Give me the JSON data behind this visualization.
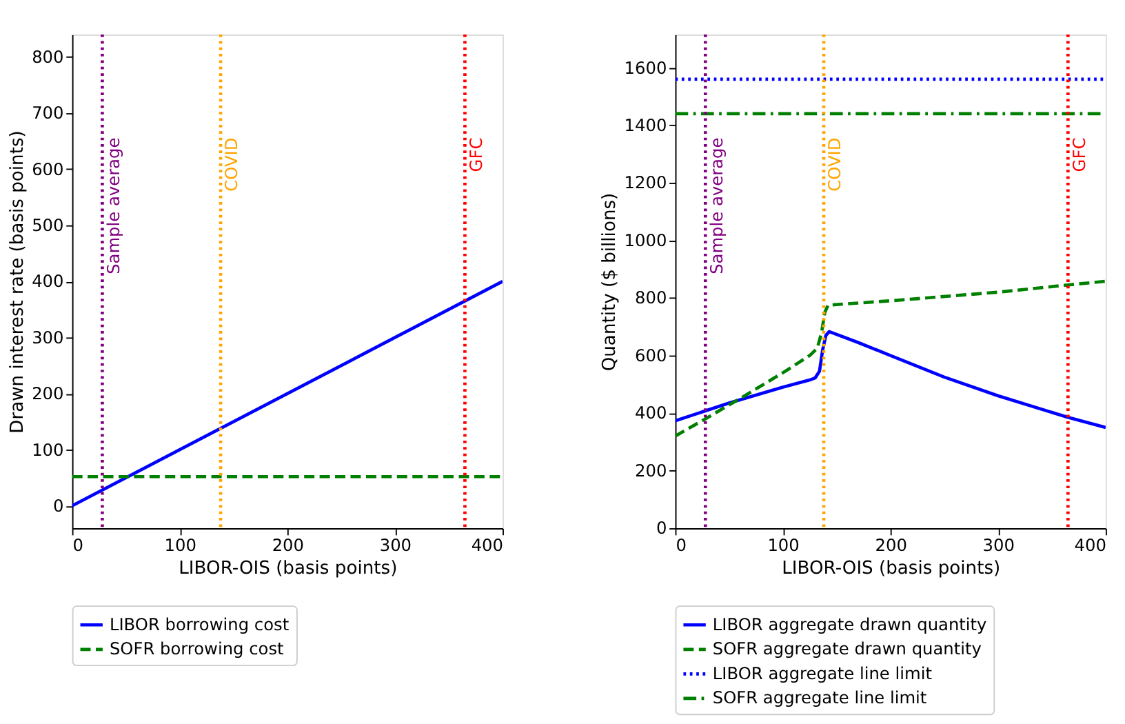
{
  "chart_data": [
    {
      "type": "line",
      "xlabel": "LIBOR-OIS (basis points)",
      "ylabel": "Drawn interest rate (basis points)",
      "xlim": [
        0,
        400
      ],
      "ylim": [
        -40,
        840
      ],
      "xticks": [
        0,
        100,
        200,
        300,
        400
      ],
      "yticks": [
        0,
        100,
        200,
        300,
        400,
        500,
        600,
        700,
        800
      ],
      "grid": false,
      "legend": "bottom",
      "series": [
        {
          "name": "LIBOR borrowing cost",
          "color": "#0000ff",
          "line_style": "solid",
          "x": [
            0,
            400
          ],
          "values": [
            0,
            400
          ]
        },
        {
          "name": "SOFR borrowing cost",
          "color": "#008000",
          "line_style": "dashed",
          "x": [
            0,
            400
          ],
          "values": [
            52,
            52
          ]
        }
      ],
      "ref_lines": [
        {
          "axis": "x",
          "value": 28,
          "label": "Sample average",
          "color": "#800080",
          "line_style": "dotted"
        },
        {
          "axis": "x",
          "value": 138,
          "label": "COVID",
          "color": "#ffa500",
          "line_style": "dotted"
        },
        {
          "axis": "x",
          "value": 365,
          "label": "GFC",
          "color": "#ff0000",
          "line_style": "dotted"
        }
      ]
    },
    {
      "type": "line",
      "xlabel": "LIBOR-OIS (basis points)",
      "ylabel": "Quantity ($ billions)",
      "xlim": [
        0,
        400
      ],
      "ylim": [
        0,
        1715
      ],
      "xticks": [
        0,
        100,
        200,
        300,
        400
      ],
      "yticks": [
        0,
        200,
        400,
        600,
        800,
        1000,
        1200,
        1400,
        1600
      ],
      "grid": false,
      "legend": "bottom",
      "series": [
        {
          "name": "LIBOR aggregate drawn quantity",
          "color": "#0000ff",
          "line_style": "solid",
          "x": [
            0,
            50,
            100,
            125,
            130,
            134,
            137,
            140,
            143,
            170,
            200,
            250,
            300,
            365,
            400
          ],
          "values": [
            373,
            435,
            490,
            515,
            522,
            545,
            620,
            670,
            683,
            645,
            600,
            525,
            460,
            385,
            350
          ]
        },
        {
          "name": "SOFR aggregate drawn quantity",
          "color": "#008000",
          "line_style": "dashed",
          "x": [
            0,
            28,
            60,
            100,
            125,
            132,
            136,
            139,
            142,
            200,
            300,
            365,
            400
          ],
          "values": [
            320,
            380,
            450,
            540,
            600,
            625,
            680,
            750,
            775,
            790,
            820,
            845,
            858
          ]
        },
        {
          "name": "LIBOR aggregate line limit",
          "color": "#0000ff",
          "line_style": "dotted",
          "x": [
            0,
            400
          ],
          "values": [
            1560,
            1560
          ]
        },
        {
          "name": "SOFR aggregate line limit",
          "color": "#008000",
          "line_style": "dashdot",
          "x": [
            0,
            400
          ],
          "values": [
            1440,
            1440
          ]
        }
      ],
      "ref_lines": [
        {
          "axis": "x",
          "value": 28,
          "label": "Sample average",
          "color": "#800080",
          "line_style": "dotted"
        },
        {
          "axis": "x",
          "value": 138,
          "label": "COVID",
          "color": "#ffa500",
          "line_style": "dotted"
        },
        {
          "axis": "x",
          "value": 365,
          "label": "GFC",
          "color": "#ff0000",
          "line_style": "dotted"
        }
      ]
    }
  ]
}
